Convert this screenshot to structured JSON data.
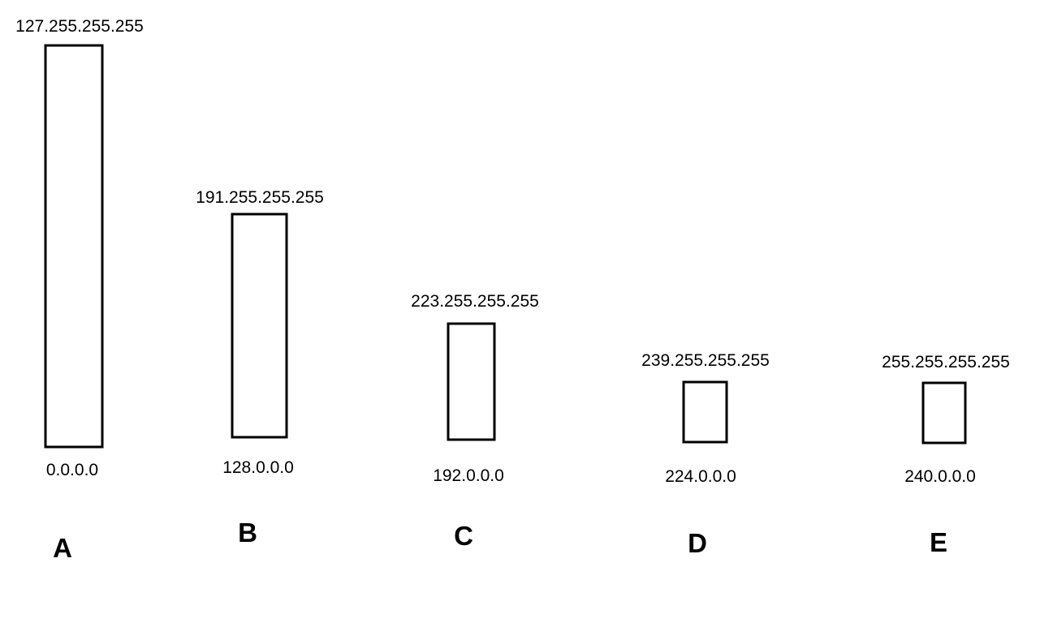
{
  "classes": [
    {
      "id": "a",
      "label": "A",
      "start": "0.0.0.0",
      "end": "127.255.255.255"
    },
    {
      "id": "b",
      "label": "B",
      "start": "128.0.0.0",
      "end": "191.255.255.255"
    },
    {
      "id": "c",
      "label": "C",
      "start": "192.0.0.0",
      "end": "223.255.255.255"
    },
    {
      "id": "d",
      "label": "D",
      "start": "224.0.0.0",
      "end": "239.255.255.255"
    },
    {
      "id": "e",
      "label": "E",
      "start": "240.0.0.0",
      "end": "255.255.255.255"
    }
  ],
  "colors": {
    "stroke": "#000000",
    "background": "#ffffff"
  }
}
